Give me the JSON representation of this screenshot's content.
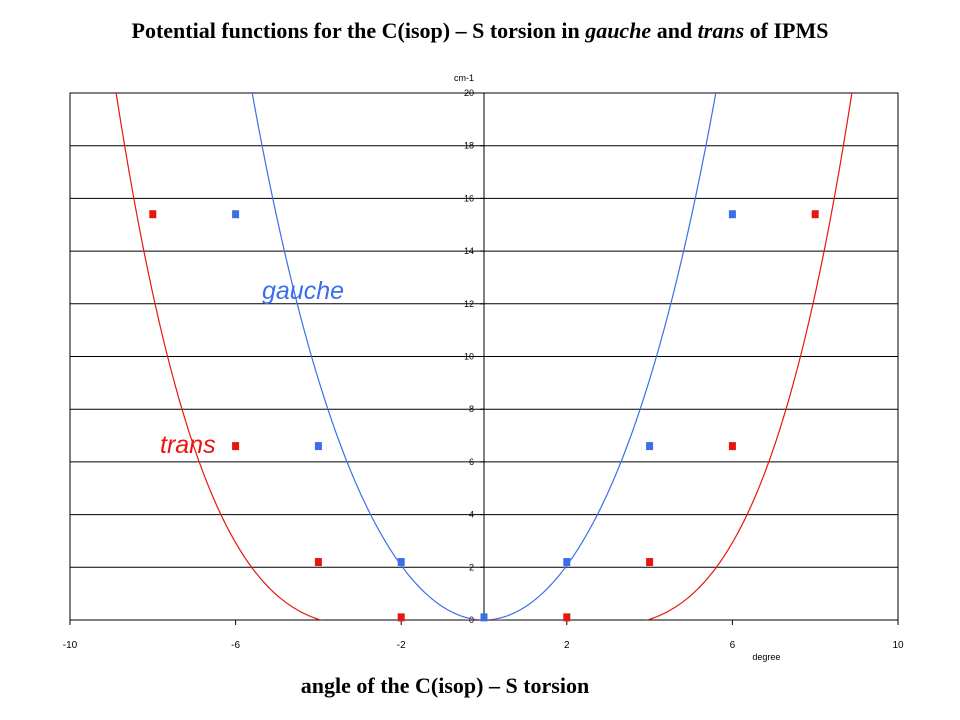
{
  "title": {
    "part1": "Potential functions for the C(isop) – S torsion in ",
    "gauche": "gauche",
    "part2": " and ",
    "trans": "trans",
    "part3": " of IPMS"
  },
  "x_caption": "angle of the C(isop) – S torsion",
  "colors": {
    "gauche": "#3a6fe8",
    "trans": "#e8160f",
    "grid": "#000000"
  },
  "chart_data": {
    "type": "scatter",
    "title": "Potential functions for the C(isop) – S torsion in gauche and trans of IPMS",
    "xlabel": "degree",
    "ylabel": "cm-1",
    "xlim": [
      -10,
      10
    ],
    "ylim": [
      0,
      20
    ],
    "x_ticks": [
      -10,
      -6,
      -2,
      2,
      6,
      10
    ],
    "y_ticks": [
      0,
      2,
      4,
      6,
      8,
      10,
      12,
      14,
      16,
      18,
      20
    ],
    "grid": "horizontal",
    "series": [
      {
        "name": "gauche",
        "points": [
          [
            -6,
            15.4
          ],
          [
            -4,
            6.6
          ],
          [
            -2,
            2.2
          ],
          [
            0,
            0.1
          ],
          [
            2,
            2.2
          ],
          [
            4,
            6.6
          ],
          [
            6,
            15.4
          ]
        ],
        "curve": {
          "form": "a*x^2 + b*x^4",
          "a": 0.5,
          "b": 0.0044,
          "xlim": [
            -6.9,
            6.9
          ]
        }
      },
      {
        "name": "trans",
        "points": [
          [
            -8,
            15.4
          ],
          [
            -6,
            6.6
          ],
          [
            -4,
            2.2
          ],
          [
            -2,
            0.1
          ],
          [
            2,
            0.1
          ],
          [
            4,
            2.2
          ],
          [
            6,
            6.6
          ],
          [
            8,
            15.4
          ]
        ],
        "curve": {
          "form": "a*x^2 + b*x^4",
          "a": -0.0625,
          "b": 0.004,
          "xlim": [
            -9.1,
            9.1
          ]
        }
      }
    ]
  }
}
